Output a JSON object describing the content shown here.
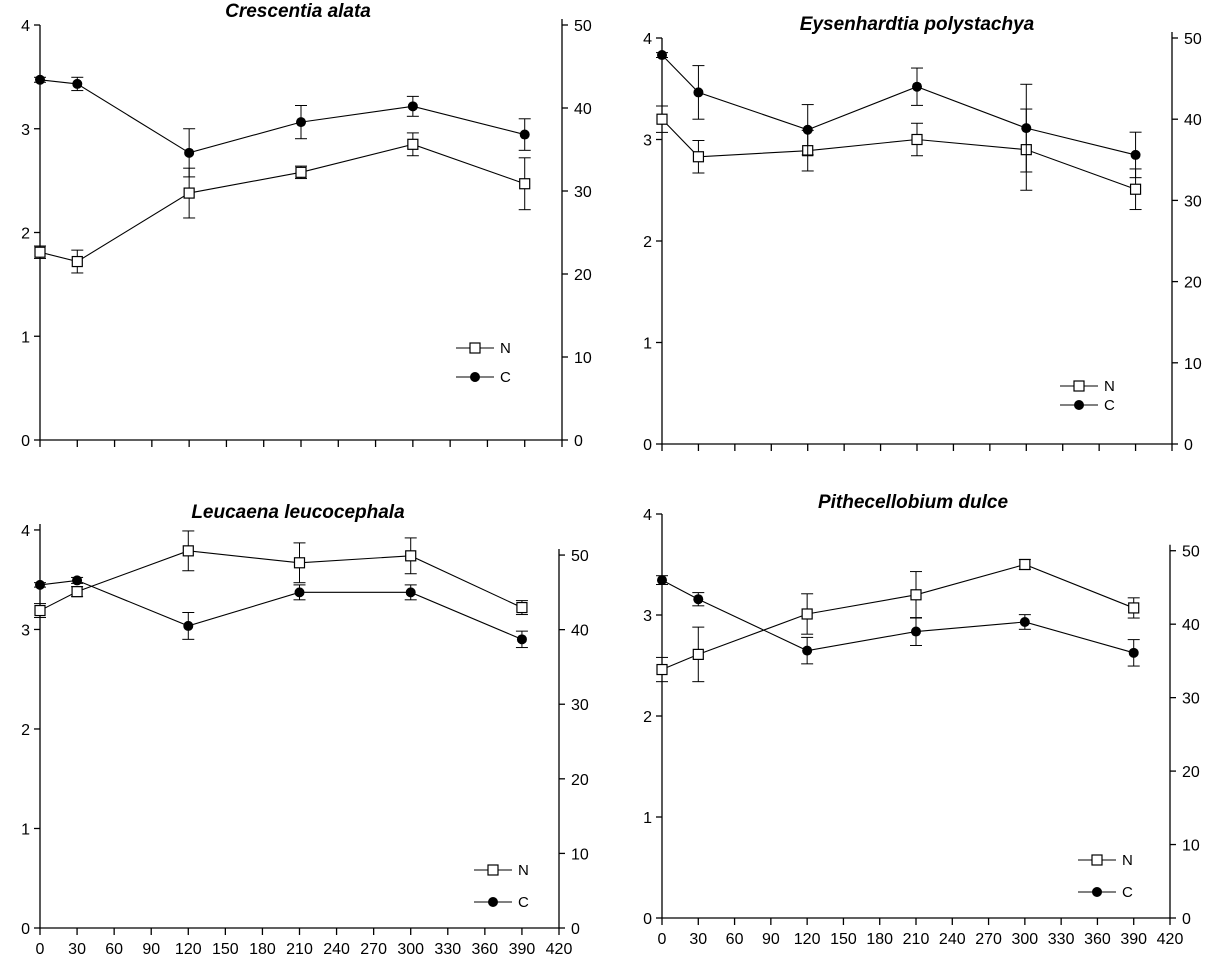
{
  "chart_data": [
    {
      "type": "line",
      "title": "Crescentia alata",
      "x": [
        0,
        30,
        120,
        210,
        300,
        390
      ],
      "left_ylim": [
        0,
        4
      ],
      "left_yticks": [
        0,
        1,
        2,
        3,
        4
      ],
      "right_ylim": [
        0,
        50
      ],
      "right_yticks": [
        0,
        10,
        20,
        30,
        40,
        50
      ],
      "xlim": [
        0,
        420
      ],
      "xticks": [
        0,
        30,
        60,
        90,
        120,
        150,
        180,
        210,
        240,
        270,
        300,
        330,
        360,
        390,
        420
      ],
      "show_xtick_labels": false,
      "legend_position": "lower-right",
      "series": [
        {
          "name": "N",
          "marker": "open-square",
          "axis": "left",
          "values": [
            1.81,
            1.72,
            2.38,
            2.58,
            2.85,
            2.47
          ],
          "errors": [
            0.06,
            0.11,
            0.24,
            0.06,
            0.11,
            0.25
          ]
        },
        {
          "name": "C",
          "marker": "filled-circle",
          "axis": "right",
          "values": [
            43.4,
            42.9,
            34.6,
            38.3,
            40.2,
            36.8
          ],
          "errors": [
            0.3,
            0.8,
            2.9,
            2.0,
            1.2,
            1.9
          ]
        }
      ]
    },
    {
      "type": "line",
      "title": "Eysenhardtia polystachya",
      "x": [
        0,
        30,
        120,
        210,
        300,
        390
      ],
      "left_ylim": [
        0,
        4
      ],
      "left_yticks": [
        0,
        1,
        2,
        3,
        4
      ],
      "right_ylim": [
        0,
        50
      ],
      "right_yticks": [
        0,
        10,
        20,
        30,
        40,
        50
      ],
      "xlim": [
        0,
        420
      ],
      "xticks": [
        0,
        30,
        60,
        90,
        120,
        150,
        180,
        210,
        240,
        270,
        300,
        330,
        360,
        390,
        420
      ],
      "show_xtick_labels": false,
      "legend_position": "lower-right",
      "series": [
        {
          "name": "N",
          "marker": "open-square",
          "axis": "left",
          "values": [
            3.2,
            2.83,
            2.89,
            3.0,
            2.9,
            2.51
          ],
          "errors": [
            0.13,
            0.16,
            0.2,
            0.16,
            0.4,
            0.2
          ]
        },
        {
          "name": "C",
          "marker": "filled-circle",
          "axis": "right",
          "values": [
            47.9,
            43.3,
            38.7,
            44.0,
            38.9,
            35.6
          ],
          "errors": [
            0.3,
            3.3,
            3.1,
            2.3,
            5.4,
            2.8
          ]
        }
      ]
    },
    {
      "type": "line",
      "title": "Leucaena leucocephala",
      "x": [
        0,
        30,
        120,
        210,
        300,
        390
      ],
      "left_ylim": [
        0,
        4.1
      ],
      "left_yticks": [
        0,
        1,
        2,
        3,
        4
      ],
      "right_ylim": [
        0,
        54.7
      ],
      "right_yticks": [
        0,
        10,
        20,
        30,
        40,
        50
      ],
      "xlim": [
        0,
        420
      ],
      "xticks": [
        0,
        30,
        60,
        90,
        120,
        150,
        180,
        210,
        240,
        270,
        300,
        330,
        360,
        390,
        420
      ],
      "show_xtick_labels": true,
      "legend_position": "lower-right",
      "series": [
        {
          "name": "N",
          "marker": "open-square",
          "axis": "left",
          "values": [
            3.19,
            3.38,
            3.79,
            3.67,
            3.74,
            3.22
          ],
          "errors": [
            0.07,
            0.05,
            0.2,
            0.2,
            0.18,
            0.07
          ]
        },
        {
          "name": "C",
          "marker": "filled-circle",
          "axis": "right",
          "values": [
            46.0,
            46.6,
            40.5,
            45.0,
            45.0,
            38.7
          ],
          "errors": [
            0.3,
            0.4,
            1.8,
            1.0,
            1.0,
            1.1
          ]
        }
      ]
    },
    {
      "type": "line",
      "title": "Pithecellobium dulce",
      "x": [
        0,
        30,
        120,
        210,
        300,
        390
      ],
      "left_ylim": [
        0,
        4
      ],
      "left_yticks": [
        0,
        1,
        2,
        3,
        4
      ],
      "right_ylim": [
        0,
        55
      ],
      "right_yticks": [
        0,
        10,
        20,
        30,
        40,
        50
      ],
      "xlim": [
        0,
        420
      ],
      "xticks": [
        0,
        30,
        60,
        90,
        120,
        150,
        180,
        210,
        240,
        270,
        300,
        330,
        360,
        390,
        420
      ],
      "show_xtick_labels": true,
      "legend_position": "lower-right",
      "series": [
        {
          "name": "N",
          "marker": "open-square",
          "axis": "left",
          "values": [
            2.46,
            2.61,
            3.01,
            3.2,
            3.5,
            3.07
          ],
          "errors": [
            0.12,
            0.27,
            0.2,
            0.23,
            0.05,
            0.1
          ]
        },
        {
          "name": "C",
          "marker": "filled-circle",
          "axis": "right",
          "values": [
            46.0,
            43.4,
            36.4,
            39.0,
            40.3,
            36.1
          ],
          "errors": [
            0.6,
            0.9,
            1.8,
            1.9,
            1.0,
            1.8
          ]
        }
      ]
    }
  ]
}
